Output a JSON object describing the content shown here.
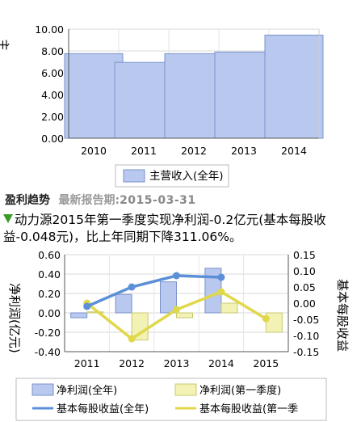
{
  "revenue_chart": {
    "ylabel": "主营收入(亿元)",
    "legend_label": "主营收入(全年)",
    "bar_color": "#b8c8ee",
    "bar_stroke": "#7a93cc"
  },
  "profit_section": {
    "title": "盈利趋势",
    "report_date_label": "最新报告期:",
    "report_date": "2015-03-31",
    "summary_text": "动力源2015年第一季度实现净利润-0.2亿元(基本每股收益-0.048元)，比上年同期下降311.06%。",
    "summary_arrow_icon": "down-arrow-icon",
    "arrow_color": "#3a9b2a"
  },
  "profit_chart": {
    "ylabel_left": "净利润(亿元)",
    "ylabel_right": "基本每股收益",
    "legend": {
      "net_profit_year": "净利润(全年)",
      "net_profit_q1": "净利润(第一季度)",
      "eps_year": "基本每股收益(全年)",
      "eps_q1": "基本每股收益(第一季"
    },
    "colors": {
      "year_bar": "#b8c8ee",
      "year_bar_stroke": "#7a93cc",
      "q1_bar": "#f2f2b4",
      "q1_bar_stroke": "#c8c870",
      "eps_year_line": "#5b8fd8",
      "eps_q1_line": "#e0d84a"
    }
  },
  "chart_data": [
    {
      "type": "bar",
      "categories": [
        "2010",
        "2011",
        "2012",
        "2013",
        "2014"
      ],
      "values": [
        7.75,
        6.95,
        7.75,
        7.9,
        9.45
      ],
      "xlabel": "",
      "ylabel": "主营收入(亿元)",
      "ylim": [
        0,
        10
      ],
      "yticks": [
        "0.00",
        "2.00",
        "4.00",
        "6.00",
        "8.00",
        "10.00"
      ],
      "series": [
        {
          "name": "主营收入(全年)",
          "values": [
            7.75,
            6.95,
            7.75,
            7.9,
            9.45
          ]
        }
      ],
      "grid": true,
      "legend_position": "bottom"
    },
    {
      "type": "bar",
      "categories": [
        "2011",
        "2012",
        "2013",
        "2014",
        "2015"
      ],
      "ylabel": "净利润(亿元)",
      "ylim": [
        -0.4,
        0.6
      ],
      "yticks": [
        "-0.40",
        "-0.20",
        "0.00",
        "0.20",
        "0.40",
        "0.60"
      ],
      "ylabel_right": "基本每股收益",
      "ylim_right": [
        -0.15,
        0.15
      ],
      "yticks_right": [
        "-0.15",
        "-0.10",
        "-0.05",
        "0.00",
        "0.05",
        "0.10",
        "0.15"
      ],
      "series": [
        {
          "name": "净利润(全年)",
          "kind": "bar",
          "axis": "left",
          "values": [
            -0.05,
            0.19,
            0.32,
            0.46,
            null
          ]
        },
        {
          "name": "净利润(第一季度)",
          "kind": "bar",
          "axis": "left",
          "values": [
            0.01,
            -0.28,
            -0.05,
            0.1,
            -0.2
          ]
        },
        {
          "name": "基本每股收益(全年)",
          "kind": "line",
          "axis": "right",
          "values": [
            -0.01,
            0.05,
            0.085,
            0.08,
            null
          ]
        },
        {
          "name": "基本每股收益(第一季度)",
          "kind": "line",
          "axis": "right",
          "values": [
            0.0,
            -0.11,
            -0.02,
            0.035,
            -0.048
          ]
        }
      ],
      "grid": true,
      "legend_position": "bottom"
    }
  ]
}
